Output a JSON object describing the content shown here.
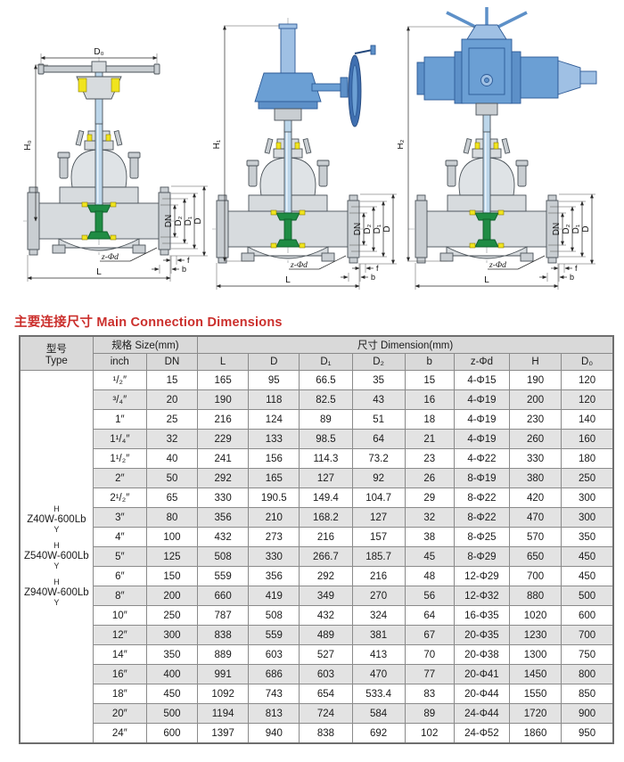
{
  "title": "主要连接尺寸 Main Connection Dimensions",
  "accent_color": "#cb2f2c",
  "diagram_labels": {
    "d0": "D₀",
    "h0": "H₀",
    "h1": "H₁",
    "h2": "H₂",
    "dn": "DN",
    "d2": "D₂",
    "d1": "D₁",
    "d": "D",
    "z_phi_d": "z-Φd",
    "f": "f",
    "b": "b",
    "l": "L"
  },
  "diagrams": [
    {
      "name": "handwheel-gate-valve",
      "height_label": "H₀",
      "width_label": "D₀"
    },
    {
      "name": "bevel-gear-gate-valve",
      "height_label": "H₁"
    },
    {
      "name": "electric-actuator-gate-valve",
      "height_label": "H₂"
    }
  ],
  "table": {
    "header": {
      "type_cn": "型号",
      "type_en": "Type",
      "size_group": "规格 Size(mm)",
      "dimension_group": "尺寸 Dimension(mm)",
      "columns": [
        "inch",
        "DN",
        "L",
        "D",
        "D₁",
        "D₂",
        "b",
        "z-Φd",
        "H",
        "D₀"
      ]
    },
    "type_models": [
      {
        "top": "H",
        "name": "Z40W-600Lb",
        "bottom": "Y"
      },
      {
        "top": "H",
        "name": "Z540W-600Lb",
        "bottom": "Y"
      },
      {
        "top": "H",
        "name": "Z940W-600Lb",
        "bottom": "Y"
      }
    ],
    "rows": [
      [
        "¹/₂″",
        "15",
        "165",
        "95",
        "66.5",
        "35",
        "15",
        "4-Φ15",
        "190",
        "120"
      ],
      [
        "³/₄″",
        "20",
        "190",
        "118",
        "82.5",
        "43",
        "16",
        "4-Φ19",
        "200",
        "120"
      ],
      [
        "1″",
        "25",
        "216",
        "124",
        "89",
        "51",
        "18",
        "4-Φ19",
        "230",
        "140"
      ],
      [
        "1¹/₄″",
        "32",
        "229",
        "133",
        "98.5",
        "64",
        "21",
        "4-Φ19",
        "260",
        "160"
      ],
      [
        "1¹/₂″",
        "40",
        "241",
        "156",
        "114.3",
        "73.2",
        "23",
        "4-Φ22",
        "330",
        "180"
      ],
      [
        "2″",
        "50",
        "292",
        "165",
        "127",
        "92",
        "26",
        "8-Φ19",
        "380",
        "250"
      ],
      [
        "2¹/₂″",
        "65",
        "330",
        "190.5",
        "149.4",
        "104.7",
        "29",
        "8-Φ22",
        "420",
        "300"
      ],
      [
        "3″",
        "80",
        "356",
        "210",
        "168.2",
        "127",
        "32",
        "8-Φ22",
        "470",
        "300"
      ],
      [
        "4″",
        "100",
        "432",
        "273",
        "216",
        "157",
        "38",
        "8-Φ25",
        "570",
        "350"
      ],
      [
        "5″",
        "125",
        "508",
        "330",
        "266.7",
        "185.7",
        "45",
        "8-Φ29",
        "650",
        "450"
      ],
      [
        "6″",
        "150",
        "559",
        "356",
        "292",
        "216",
        "48",
        "12-Φ29",
        "700",
        "450"
      ],
      [
        "8″",
        "200",
        "660",
        "419",
        "349",
        "270",
        "56",
        "12-Φ32",
        "880",
        "500"
      ],
      [
        "10″",
        "250",
        "787",
        "508",
        "432",
        "324",
        "64",
        "16-Φ35",
        "1020",
        "600"
      ],
      [
        "12″",
        "300",
        "838",
        "559",
        "489",
        "381",
        "67",
        "20-Φ35",
        "1230",
        "700"
      ],
      [
        "14″",
        "350",
        "889",
        "603",
        "527",
        "413",
        "70",
        "20-Φ38",
        "1300",
        "750"
      ],
      [
        "16″",
        "400",
        "991",
        "686",
        "603",
        "470",
        "77",
        "20-Φ41",
        "1450",
        "800"
      ],
      [
        "18″",
        "450",
        "1092",
        "743",
        "654",
        "533.4",
        "83",
        "20-Φ44",
        "1550",
        "850"
      ],
      [
        "20″",
        "500",
        "1194",
        "813",
        "724",
        "584",
        "89",
        "24-Φ44",
        "1720",
        "900"
      ],
      [
        "24″",
        "600",
        "1397",
        "940",
        "838",
        "692",
        "102",
        "24-Φ52",
        "1860",
        "950"
      ]
    ]
  }
}
